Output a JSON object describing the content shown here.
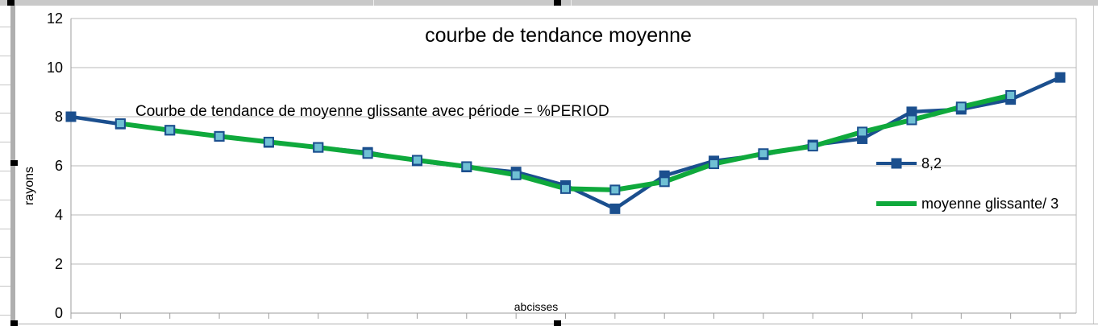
{
  "chart_data": {
    "type": "line",
    "title": "courbe de tendance moyenne",
    "annotation": "Courbe de tendance de moyenne glissante avec période = %PERIOD",
    "xlabel": "abcisses",
    "ylabel": "rayons",
    "ylim": [
      0,
      12
    ],
    "yticks": [
      0,
      2,
      4,
      6,
      8,
      10,
      12
    ],
    "x_tick_labels_visible": false,
    "grid": "horizontal",
    "legend_position": "right-middle",
    "series": [
      {
        "name": "8,2",
        "color": "#1b4f8e",
        "marker": "square",
        "marker_fill": "#1b4f8e",
        "values": [
          8.0,
          7.7,
          7.45,
          7.2,
          6.95,
          6.75,
          6.55,
          6.2,
          5.95,
          5.75,
          5.2,
          4.25,
          5.6,
          6.2,
          6.45,
          6.85,
          7.1,
          8.2,
          8.3,
          8.7,
          9.6
        ]
      },
      {
        "name": "moyenne glissante/ 3",
        "color": "#0fa93c",
        "marker": "small-square",
        "marker_fill": "#6fc0d4",
        "values": [
          null,
          7.72,
          7.45,
          7.2,
          6.97,
          6.75,
          6.5,
          6.23,
          5.97,
          5.63,
          5.07,
          5.02,
          5.35,
          6.08,
          6.5,
          6.8,
          7.38,
          7.87,
          8.4,
          8.87,
          null
        ]
      }
    ]
  },
  "colors": {
    "grid": "#b9b9b9",
    "axis": "#9e9e9e",
    "chrome_gray": "#c9c9c9",
    "chrome_bar": "#afafaf"
  }
}
